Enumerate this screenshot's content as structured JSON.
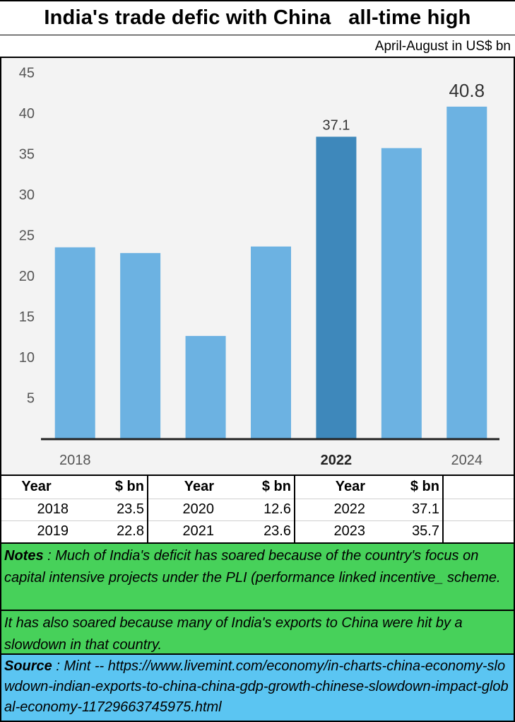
{
  "title": "India's trade defic with China   all-time high",
  "subtitle": "April-August in US$ bn",
  "chart_data": {
    "type": "bar",
    "categories": [
      "2018",
      "2019",
      "2020",
      "2021",
      "2022",
      "2023",
      "2024"
    ],
    "values": [
      23.5,
      22.8,
      12.6,
      23.6,
      37.1,
      35.7,
      40.8
    ],
    "tick_labels": [
      "2018",
      "",
      "",
      "",
      "2022",
      "",
      "2024"
    ],
    "highlight_index": 4,
    "data_labels": [
      {
        "index": 4,
        "text": "37.1"
      },
      {
        "index": 6,
        "text": "40.8"
      }
    ],
    "y_ticks": [
      5,
      10,
      15,
      20,
      25,
      30,
      35,
      40,
      45
    ],
    "ylim": [
      0,
      45
    ],
    "grid": false,
    "colors": {
      "bar": "#6cb2e2",
      "highlight": "#3e88bb",
      "background": "#f3f3f3",
      "axis": "#222222",
      "tick_text": "#555555"
    }
  },
  "table": {
    "headers": [
      "Year",
      "$ bn",
      "Year",
      "$ bn",
      "Year",
      "$ bn"
    ],
    "rows": [
      [
        "2018",
        "23.5",
        "2020",
        "12.6",
        "2022",
        "37.1"
      ],
      [
        "2019",
        "22.8",
        "2021",
        "23.6",
        "2023",
        "35.7"
      ]
    ]
  },
  "notes": {
    "label": "Notes",
    "text1": " : Much of India's deficit has soared because of the country's focus on capital intensive projects under the PLI (performance linked incentive_ scheme.",
    "text2": "It has also soared because many of India's exports to China were hit by a slowdown in that country."
  },
  "source": {
    "label": "Source",
    "text": " : Mint -- https://www.livemint.com/economy/in-charts-china-economy-slowdown-indian-exports-to-china-china-gdp-growth-chinese-slowdown-impact-global-economy-11729663745975.html"
  }
}
